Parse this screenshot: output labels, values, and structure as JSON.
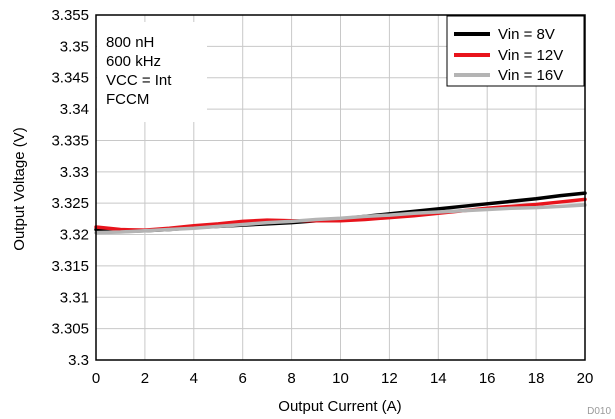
{
  "chart_data": {
    "type": "line",
    "xlabel": "Output Current (A)",
    "ylabel": "Output Voltage (V)",
    "xlim": [
      0,
      20
    ],
    "ylim": [
      3.3,
      3.355
    ],
    "x_ticks": [
      "0",
      "2",
      "4",
      "6",
      "8",
      "10",
      "12",
      "14",
      "16",
      "18",
      "20"
    ],
    "y_ticks": [
      "3.3",
      "3.305",
      "3.31",
      "3.315",
      "3.32",
      "3.325",
      "3.33",
      "3.335",
      "3.34",
      "3.345",
      "3.35",
      "3.355"
    ],
    "grid": true,
    "legend_position": "top-right",
    "annotation_lines": [
      "800 nH",
      "600 kHz",
      "VCC = Int",
      "FCCM"
    ],
    "figure_id": "D010",
    "series": [
      {
        "name": "Vin = 8V",
        "color": "#000000",
        "x": [
          0,
          1,
          2,
          3,
          4,
          5,
          6,
          7,
          8,
          9,
          10,
          11,
          12,
          13,
          14,
          15,
          16,
          17,
          18,
          19,
          20
        ],
        "y": [
          3.3208,
          3.3205,
          3.3206,
          3.3208,
          3.3211,
          3.3213,
          3.3215,
          3.3217,
          3.3219,
          3.3222,
          3.3225,
          3.3229,
          3.3233,
          3.3237,
          3.3241,
          3.3245,
          3.3249,
          3.3253,
          3.3257,
          3.3262,
          3.3266
        ]
      },
      {
        "name": "Vin = 12V",
        "color": "#e8141c",
        "x": [
          0,
          1,
          2,
          3,
          4,
          5,
          6,
          7,
          8,
          9,
          10,
          11,
          12,
          13,
          14,
          15,
          16,
          17,
          18,
          19,
          20
        ],
        "y": [
          3.3212,
          3.3208,
          3.3207,
          3.321,
          3.3214,
          3.3217,
          3.3221,
          3.3223,
          3.3222,
          3.3222,
          3.3222,
          3.3224,
          3.3227,
          3.323,
          3.3234,
          3.3238,
          3.3242,
          3.3245,
          3.3248,
          3.3252,
          3.3256
        ]
      },
      {
        "name": "Vin = 16V",
        "color": "#b4b4b4",
        "x": [
          0,
          1,
          2,
          3,
          4,
          5,
          6,
          7,
          8,
          9,
          10,
          11,
          12,
          13,
          14,
          15,
          16,
          17,
          18,
          19,
          20
        ],
        "y": [
          3.3203,
          3.3204,
          3.3206,
          3.3208,
          3.321,
          3.3213,
          3.3216,
          3.3219,
          3.3221,
          3.3224,
          3.3226,
          3.3229,
          3.3231,
          3.3234,
          3.3236,
          3.3238,
          3.324,
          3.3242,
          3.3243,
          3.3245,
          3.3247
        ]
      }
    ]
  }
}
